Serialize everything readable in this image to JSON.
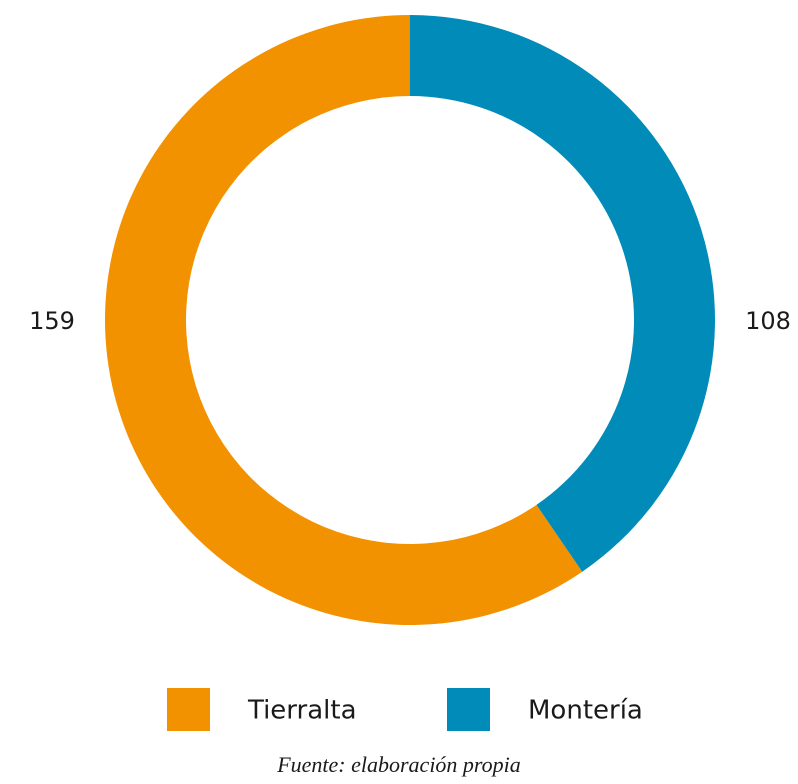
{
  "chart_data": {
    "type": "donut",
    "categories": [
      "Tierralta",
      "Montería"
    ],
    "values": [
      159,
      108
    ],
    "colors": [
      "#f39200",
      "#008bb9"
    ],
    "source": "Fuente: elaboración propia"
  }
}
